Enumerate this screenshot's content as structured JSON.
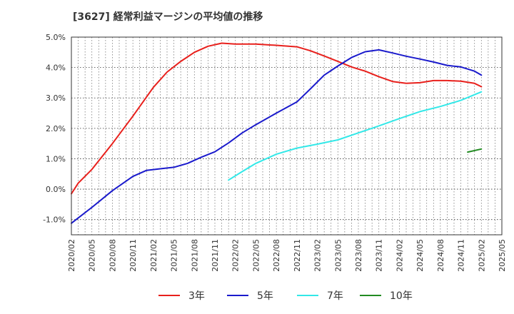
{
  "chart_data": {
    "type": "line",
    "title": "[3627]  経常利益マージンの平均値の推移",
    "xlabel": "",
    "ylabel": "",
    "ylim": [
      -1.5,
      5.0
    ],
    "y_ticks": [
      -1.0,
      0.0,
      1.0,
      2.0,
      3.0,
      4.0,
      5.0
    ],
    "y_tick_labels": [
      "-1.0%",
      "0.0%",
      "1.0%",
      "2.0%",
      "3.0%",
      "4.0%",
      "5.0%"
    ],
    "x_range": [
      "2020/02",
      "2025/05"
    ],
    "x_tick_labels": [
      "2020/02",
      "2020/05",
      "2020/08",
      "2020/11",
      "2021/02",
      "2021/05",
      "2021/08",
      "2021/11",
      "2022/02",
      "2022/05",
      "2022/08",
      "2022/11",
      "2023/02",
      "2023/05",
      "2023/08",
      "2023/11",
      "2024/02",
      "2024/05",
      "2024/08",
      "2024/11",
      "2025/02",
      "2025/05"
    ],
    "grid": true,
    "legend_position": "bottom",
    "series": [
      {
        "name": "3年",
        "color": "#e8201c",
        "x": [
          "2020/02",
          "2020/03",
          "2020/05",
          "2020/08",
          "2020/11",
          "2021/02",
          "2021/04",
          "2021/06",
          "2021/08",
          "2021/10",
          "2021/12",
          "2022/02",
          "2022/05",
          "2022/08",
          "2022/11",
          "2023/01",
          "2023/03",
          "2023/05",
          "2023/07",
          "2023/09",
          "2023/11",
          "2024/01",
          "2024/03",
          "2024/05",
          "2024/07",
          "2024/09",
          "2024/11",
          "2025/01",
          "2025/02"
        ],
        "values": [
          -0.15,
          0.2,
          0.65,
          1.5,
          2.4,
          3.35,
          3.85,
          4.2,
          4.5,
          4.7,
          4.8,
          4.77,
          4.77,
          4.73,
          4.68,
          4.55,
          4.38,
          4.2,
          4.02,
          3.88,
          3.7,
          3.54,
          3.48,
          3.5,
          3.57,
          3.57,
          3.55,
          3.48,
          3.37
        ]
      },
      {
        "name": "5年",
        "color": "#1a1acc",
        "x": [
          "2020/02",
          "2020/05",
          "2020/08",
          "2020/11",
          "2021/01",
          "2021/03",
          "2021/05",
          "2021/07",
          "2021/09",
          "2021/11",
          "2022/01",
          "2022/03",
          "2022/05",
          "2022/08",
          "2022/11",
          "2023/01",
          "2023/03",
          "2023/05",
          "2023/07",
          "2023/09",
          "2023/11",
          "2024/01",
          "2024/03",
          "2024/05",
          "2024/07",
          "2024/09",
          "2024/11",
          "2025/01",
          "2025/02"
        ],
        "values": [
          -1.12,
          -0.6,
          -0.05,
          0.42,
          0.62,
          0.67,
          0.72,
          0.85,
          1.05,
          1.23,
          1.52,
          1.85,
          2.12,
          2.5,
          2.87,
          3.3,
          3.75,
          4.05,
          4.33,
          4.52,
          4.58,
          4.48,
          4.37,
          4.28,
          4.18,
          4.07,
          4.02,
          3.88,
          3.75
        ]
      },
      {
        "name": "7年",
        "color": "#33e8e8",
        "x": [
          "2022/01",
          "2022/03",
          "2022/05",
          "2022/08",
          "2022/11",
          "2023/02",
          "2023/05",
          "2023/08",
          "2023/11",
          "2024/02",
          "2024/05",
          "2024/08",
          "2024/11",
          "2025/02"
        ],
        "values": [
          0.3,
          0.58,
          0.85,
          1.15,
          1.35,
          1.48,
          1.62,
          1.85,
          2.08,
          2.32,
          2.55,
          2.72,
          2.92,
          3.2
        ]
      },
      {
        "name": "10年",
        "color": "#228b22",
        "x": [
          "2024/12",
          "2025/02"
        ],
        "values": [
          1.22,
          1.32
        ]
      }
    ]
  }
}
